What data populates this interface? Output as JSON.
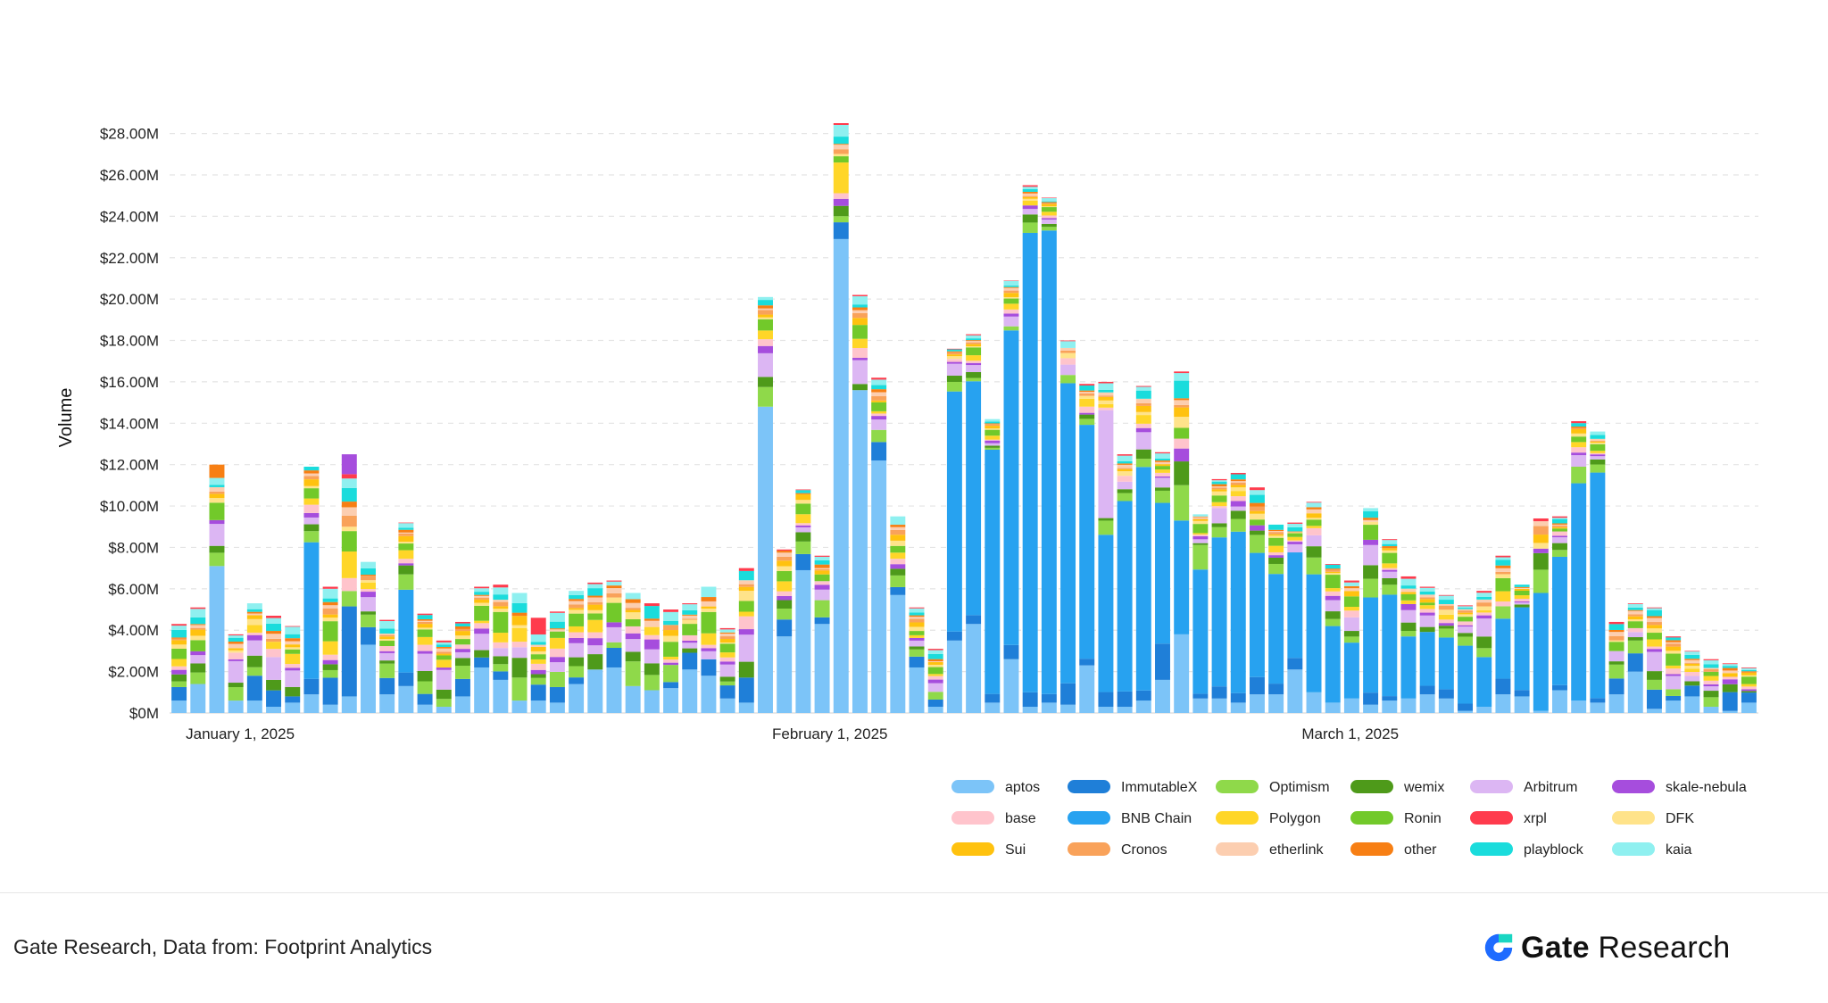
{
  "chart_data": {
    "type": "bar",
    "stacked": true,
    "ylabel": "Volume",
    "ylim": [
      0,
      28500000
    ],
    "yticks": [
      "$0M",
      "$2.00M",
      "$4.00M",
      "$6.00M",
      "$8.00M",
      "$10.00M",
      "$12.00M",
      "$14.00M",
      "$16.00M",
      "$18.00M",
      "$20.00M",
      "$22.00M",
      "$24.00M",
      "$26.00M",
      "$28.00M"
    ],
    "ytick_values": [
      0,
      2000000,
      4000000,
      6000000,
      8000000,
      10000000,
      12000000,
      14000000,
      16000000,
      18000000,
      20000000,
      22000000,
      24000000,
      26000000,
      28000000
    ],
    "x_labels": [
      {
        "text": "January 1, 2025",
        "index": 0
      },
      {
        "text": "February 1, 2025",
        "index": 31
      },
      {
        "text": "March 1, 2025",
        "index": 59
      }
    ],
    "grid": "horizontal-dashed",
    "legend_position": "bottom-right",
    "series": [
      {
        "name": "aptos",
        "color": "#7cc4f8"
      },
      {
        "name": "ImmutableX",
        "color": "#1f7fd8"
      },
      {
        "name": "Optimism",
        "color": "#8fd94a"
      },
      {
        "name": "wemix",
        "color": "#4e9a1a"
      },
      {
        "name": "Arbitrum",
        "color": "#dcb6f3"
      },
      {
        "name": "skale-nebula",
        "color": "#a64ddd"
      },
      {
        "name": "base",
        "color": "#ffc4cc"
      },
      {
        "name": "BNB Chain",
        "color": "#27a2f0"
      },
      {
        "name": "Polygon",
        "color": "#ffd628"
      },
      {
        "name": "Ronin",
        "color": "#72c92a"
      },
      {
        "name": "xrpl",
        "color": "#ff3b4d"
      },
      {
        "name": "DFK",
        "color": "#ffe38a"
      },
      {
        "name": "Sui",
        "color": "#ffc20f"
      },
      {
        "name": "Cronos",
        "color": "#f9a25a"
      },
      {
        "name": "etherlink",
        "color": "#fcceb0"
      },
      {
        "name": "other",
        "color": "#f77f14"
      },
      {
        "name": "playblock",
        "color": "#1adcdc"
      },
      {
        "name": "kaia",
        "color": "#8ff0f0"
      }
    ],
    "totals": [
      4.3,
      5.1,
      12.0,
      3.8,
      5.3,
      4.7,
      4.2,
      11.9,
      6.1,
      12.5,
      7.3,
      4.5,
      9.2,
      4.8,
      3.5,
      4.4,
      6.1,
      6.2,
      5.8,
      4.6,
      4.9,
      5.9,
      6.3,
      6.4,
      5.8,
      5.3,
      5.0,
      5.3,
      6.1,
      4.1,
      7.0,
      20.1,
      7.9,
      10.8,
      7.6,
      28.5,
      20.2,
      16.2,
      9.5,
      5.1,
      3.1,
      17.6,
      18.3,
      14.2,
      20.9,
      25.5,
      24.9,
      18.0,
      15.9,
      16.0,
      12.5,
      15.8,
      12.6,
      16.5,
      9.6,
      11.3,
      11.6,
      10.9,
      9.1,
      9.2,
      10.2,
      7.2,
      6.4,
      9.9,
      8.4,
      6.6,
      6.1,
      5.7,
      5.2,
      5.9,
      7.6,
      6.2,
      9.4,
      9.5,
      14.1,
      13.6,
      4.4,
      5.3,
      5.1,
      3.7,
      3.0,
      2.6,
      2.4,
      2.2
    ],
    "aptos": [
      0.6,
      1.4,
      7.1,
      0.6,
      0.6,
      0.3,
      0.5,
      0.9,
      0.4,
      0.8,
      3.3,
      0.9,
      1.3,
      0.4,
      0.3,
      0.8,
      2.2,
      1.6,
      0.6,
      0.6,
      0.5,
      1.4,
      2.1,
      2.2,
      1.3,
      1.1,
      1.2,
      2.1,
      1.8,
      0.7,
      0.5,
      14.8,
      3.7,
      6.9,
      4.3,
      22.9,
      15.6,
      12.2,
      5.7,
      2.2,
      0.3,
      3.5,
      4.3,
      0.5,
      2.6,
      0.3,
      0.5,
      0.4,
      2.3,
      0.3,
      0.3,
      0.6,
      1.6,
      3.8,
      0.7,
      0.7,
      0.5,
      0.9,
      0.9,
      2.1,
      1.0,
      0.5,
      0.7,
      0.4,
      0.6,
      0.7,
      0.9,
      0.7,
      0.1,
      0.3,
      0.9,
      0.8,
      0.1,
      1.1,
      0.6,
      0.5,
      0.9,
      2.0,
      0.2,
      0.6,
      0.8,
      0.3,
      0.1,
      0.5
    ],
    "bnb": [
      0,
      0,
      0,
      0,
      0,
      0,
      0,
      6.6,
      0,
      0,
      0,
      0,
      4.0,
      0,
      0,
      0,
      0,
      0,
      0,
      0,
      0,
      0,
      0,
      0,
      0,
      0,
      0,
      0,
      0,
      0,
      0,
      0,
      0,
      0,
      0,
      0,
      0,
      0,
      0,
      0,
      0,
      11.6,
      11.3,
      11.8,
      15.2,
      22.2,
      22.4,
      14.5,
      11.3,
      7.6,
      9.2,
      10.8,
      6.8,
      5.5,
      6.0,
      7.2,
      7.8,
      6.0,
      5.3,
      5.1,
      5.7,
      3.7,
      2.7,
      4.6,
      4.9,
      3.0,
      2.6,
      2.5,
      2.8,
      2.4,
      2.9,
      4.0,
      5.7,
      6.2,
      10.5,
      10.9,
      0,
      0,
      0,
      0,
      0,
      0,
      0,
      0
    ]
  },
  "footer": {
    "source": "Gate Research, Data from: Footprint Analytics",
    "brand_bold": "Gate",
    "brand_rest": " Research"
  }
}
